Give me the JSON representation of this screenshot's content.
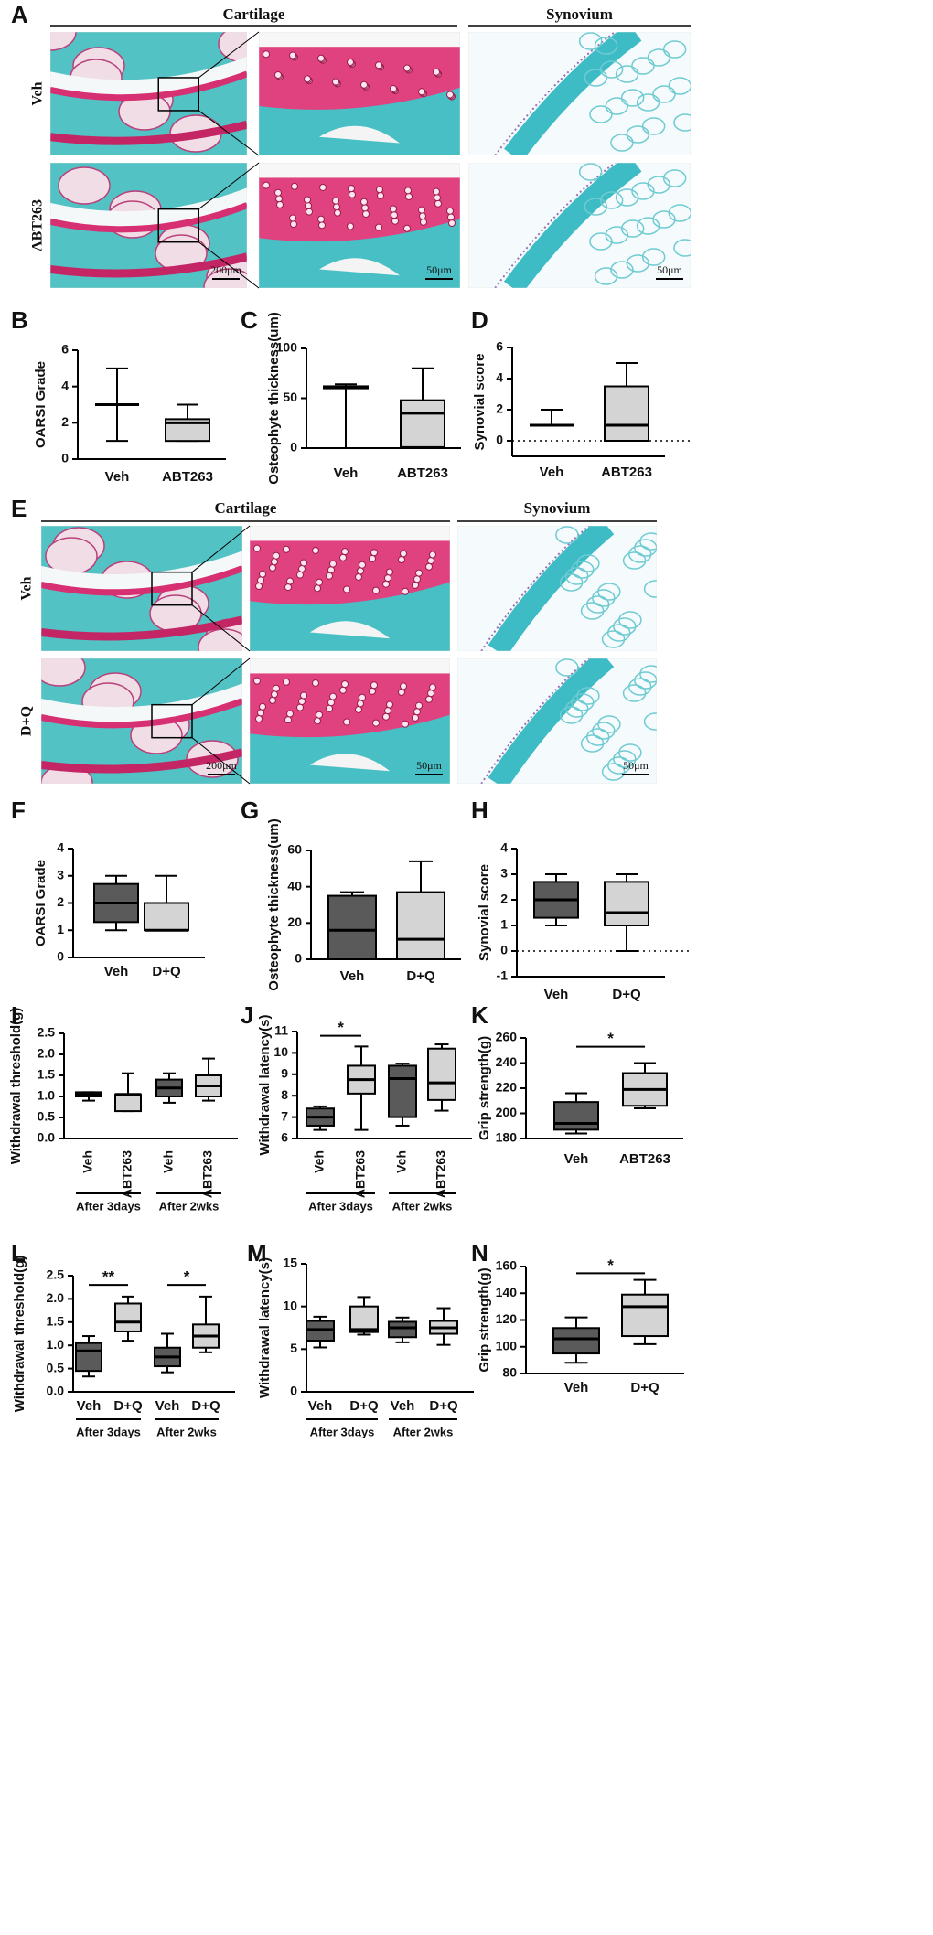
{
  "histology": [
    {
      "panel": "A",
      "headers": [
        "Cartilage",
        "Synovium"
      ],
      "rows": [
        "Veh",
        "ABT263"
      ],
      "scale_bars": [
        "200μm",
        "50μm",
        "50μm"
      ]
    },
    {
      "panel": "E",
      "headers": [
        "Cartilage",
        "Synovium"
      ],
      "rows": [
        "Veh",
        "D+Q"
      ],
      "scale_bars": [
        "200μm",
        "50μm",
        "50μm"
      ]
    }
  ],
  "chart_data": [
    {
      "type": "box",
      "panel": "B",
      "ylabel": "OARSI Grade",
      "categories": [
        "Veh",
        "ABT263"
      ],
      "colors": [
        "#5a5a5a",
        "#d4d4d4"
      ],
      "min": [
        1,
        1
      ],
      "q1": [
        3,
        1
      ],
      "median": [
        3,
        2
      ],
      "q3": [
        3,
        2.2
      ],
      "max": [
        5,
        3
      ],
      "ylim": [
        0,
        6
      ],
      "yticks": [
        0,
        2,
        4,
        6
      ]
    },
    {
      "type": "box",
      "panel": "C",
      "ylabel": "Osteophyte thickness(um)",
      "categories": [
        "Veh",
        "ABT263"
      ],
      "colors": [
        "#5a5a5a",
        "#d4d4d4"
      ],
      "min": [
        0,
        0
      ],
      "q1": [
        60,
        1
      ],
      "median": [
        61,
        35
      ],
      "q3": [
        62,
        48
      ],
      "max": [
        64,
        80
      ],
      "ylim": [
        0,
        100
      ],
      "yticks": [
        0,
        50,
        100
      ]
    },
    {
      "type": "box",
      "panel": "D",
      "ylabel": "Synovial score",
      "categories": [
        "Veh",
        "ABT263"
      ],
      "colors": [
        "#5a5a5a",
        "#d4d4d4"
      ],
      "min": [
        1,
        0
      ],
      "q1": [
        1,
        0
      ],
      "median": [
        1,
        1
      ],
      "q3": [
        1,
        3.5
      ],
      "max": [
        2,
        5
      ],
      "ylim": [
        -1,
        6
      ],
      "yticks": [
        0,
        2,
        4,
        6
      ],
      "reference_line": 0
    },
    {
      "type": "box",
      "panel": "F",
      "ylabel": "OARSI Grade",
      "categories": [
        "Veh",
        "D+Q"
      ],
      "colors": [
        "#5a5a5a",
        "#d4d4d4"
      ],
      "min": [
        1,
        1
      ],
      "q1": [
        1.3,
        1
      ],
      "median": [
        2,
        1
      ],
      "q3": [
        2.7,
        2
      ],
      "max": [
        3,
        3
      ],
      "ylim": [
        0,
        4
      ],
      "yticks": [
        0,
        1,
        2,
        3,
        4
      ]
    },
    {
      "type": "box",
      "panel": "G",
      "ylabel": "Osteophyte thickness(um)",
      "categories": [
        "Veh",
        "D+Q"
      ],
      "colors": [
        "#5a5a5a",
        "#d4d4d4"
      ],
      "min": [
        0,
        0
      ],
      "q1": [
        0,
        0
      ],
      "median": [
        16,
        11
      ],
      "q3": [
        35,
        37
      ],
      "max": [
        37,
        54
      ],
      "ylim": [
        0,
        60
      ],
      "yticks": [
        0,
        20,
        40,
        60
      ]
    },
    {
      "type": "box",
      "panel": "H",
      "ylabel": "Synovial score",
      "categories": [
        "Veh",
        "D+Q"
      ],
      "colors": [
        "#5a5a5a",
        "#d4d4d4"
      ],
      "min": [
        1,
        0
      ],
      "q1": [
        1.3,
        1
      ],
      "median": [
        2,
        1.5
      ],
      "q3": [
        2.7,
        2.7
      ],
      "max": [
        3,
        3
      ],
      "ylim": [
        -1,
        4
      ],
      "yticks": [
        -1,
        0,
        1,
        2,
        3,
        4
      ],
      "reference_line": 0
    },
    {
      "type": "box",
      "panel": "I",
      "ylabel": "Withdrawal threshold(g)",
      "categories": [
        "Veh",
        "ABT263",
        "Veh",
        "ABT263"
      ],
      "colors": [
        "#5a5a5a",
        "#d4d4d4",
        "#5a5a5a",
        "#d4d4d4"
      ],
      "min": [
        0.9,
        0.65,
        0.85,
        0.9
      ],
      "q1": [
        1.0,
        0.65,
        1.0,
        1.0
      ],
      "median": [
        1.05,
        1.05,
        1.2,
        1.25
      ],
      "q3": [
        1.1,
        1.05,
        1.4,
        1.5
      ],
      "max": [
        1.1,
        1.55,
        1.55,
        1.9
      ],
      "ylim": [
        0,
        2.5
      ],
      "yticks": [
        {
          "value": 0,
          "label": "0.0"
        },
        {
          "value": 0.5,
          "label": "0.5"
        },
        {
          "value": 1,
          "label": "1.0"
        },
        {
          "value": 1.5,
          "label": "1.5"
        },
        {
          "value": 2,
          "label": "2.0"
        },
        {
          "value": 2.5,
          "label": "2.5"
        }
      ],
      "groups": [
        {
          "label": "After 3days",
          "from": 0,
          "to": 1
        },
        {
          "label": "After 2wks",
          "from": 2,
          "to": 3
        }
      ]
    },
    {
      "type": "box",
      "panel": "J",
      "ylabel": "Withdrawal latency(s)",
      "categories": [
        "Veh",
        "ABT263",
        "Veh",
        "ABT263"
      ],
      "colors": [
        "#5a5a5a",
        "#d4d4d4",
        "#5a5a5a",
        "#d4d4d4"
      ],
      "min": [
        6.4,
        6.4,
        6.6,
        7.3
      ],
      "q1": [
        6.6,
        8.1,
        7.0,
        7.8
      ],
      "median": [
        7.0,
        8.75,
        8.8,
        8.6
      ],
      "q3": [
        7.4,
        9.4,
        9.4,
        10.2
      ],
      "max": [
        7.5,
        10.3,
        9.5,
        10.4
      ],
      "ylim": [
        6,
        11
      ],
      "yticks": [
        6,
        7,
        8,
        9,
        10,
        11
      ],
      "groups": [
        {
          "label": "After 3days",
          "from": 0,
          "to": 1
        },
        {
          "label": "After 2wks",
          "from": 2,
          "to": 3
        }
      ],
      "annotations": [
        {
          "text": "*",
          "from": 0,
          "to": 1,
          "y": 10.8
        }
      ]
    },
    {
      "type": "box",
      "panel": "K",
      "ylabel": "Grip strength(g)",
      "categories": [
        "Veh",
        "ABT263"
      ],
      "colors": [
        "#5a5a5a",
        "#d4d4d4"
      ],
      "min": [
        184,
        204
      ],
      "q1": [
        187,
        206
      ],
      "median": [
        192,
        219
      ],
      "q3": [
        209,
        232
      ],
      "max": [
        216,
        240
      ],
      "ylim": [
        180,
        260
      ],
      "yticks": [
        180,
        200,
        220,
        240,
        260
      ],
      "annotations": [
        {
          "text": "*",
          "from": 0,
          "to": 1,
          "y": 253
        }
      ]
    },
    {
      "type": "box",
      "panel": "L",
      "ylabel": "Withdrawal threshold(g)",
      "categories": [
        "Veh",
        "D+Q",
        "Veh",
        "D+Q"
      ],
      "colors": [
        "#5a5a5a",
        "#d4d4d4",
        "#5a5a5a",
        "#d4d4d4"
      ],
      "min": [
        0.33,
        1.1,
        0.42,
        0.85
      ],
      "q1": [
        0.45,
        1.3,
        0.55,
        0.95
      ],
      "median": [
        0.88,
        1.5,
        0.75,
        1.2
      ],
      "q3": [
        1.05,
        1.9,
        0.95,
        1.45
      ],
      "max": [
        1.2,
        2.05,
        1.25,
        2.05
      ],
      "ylim": [
        0,
        2.5
      ],
      "yticks": [
        {
          "value": 0,
          "label": "0.0"
        },
        {
          "value": 0.5,
          "label": "0.5"
        },
        {
          "value": 1,
          "label": "1.0"
        },
        {
          "value": 1.5,
          "label": "1.5"
        },
        {
          "value": 2,
          "label": "2.0"
        },
        {
          "value": 2.5,
          "label": "2.5"
        }
      ],
      "groups": [
        {
          "label": "After 3days",
          "from": 0,
          "to": 1
        },
        {
          "label": "After 2wks",
          "from": 2,
          "to": 3
        }
      ],
      "annotations": [
        {
          "text": "**",
          "from": 0,
          "to": 1,
          "y": 2.3
        },
        {
          "text": "*",
          "from": 2,
          "to": 3,
          "y": 2.3
        }
      ]
    },
    {
      "type": "box",
      "panel": "M",
      "ylabel": "Withdrawal latency(s)",
      "categories": [
        "Veh",
        "D+Q",
        "Veh",
        "D+Q"
      ],
      "colors": [
        "#5a5a5a",
        "#d4d4d4",
        "#5a5a5a",
        "#d4d4d4"
      ],
      "min": [
        5.2,
        6.7,
        5.8,
        5.5
      ],
      "q1": [
        6,
        7,
        6.4,
        6.8
      ],
      "median": [
        7.3,
        7.3,
        7.5,
        7.5
      ],
      "q3": [
        8.3,
        10,
        8.2,
        8.3
      ],
      "max": [
        8.8,
        11.1,
        8.7,
        9.8
      ],
      "ylim": [
        0,
        15
      ],
      "yticks": [
        0,
        5,
        10,
        15
      ],
      "groups": [
        {
          "label": "After 3days",
          "from": 0,
          "to": 1
        },
        {
          "label": "After 2wks",
          "from": 2,
          "to": 3
        }
      ]
    },
    {
      "type": "box",
      "panel": "N",
      "ylabel": "Grip strength(g)",
      "categories": [
        "Veh",
        "D+Q"
      ],
      "colors": [
        "#5a5a5a",
        "#d4d4d4"
      ],
      "min": [
        88,
        102
      ],
      "q1": [
        95,
        108
      ],
      "median": [
        106,
        130
      ],
      "q3": [
        114,
        139
      ],
      "max": [
        122,
        150
      ],
      "ylim": [
        80,
        160
      ],
      "yticks": [
        80,
        100,
        120,
        140,
        160
      ],
      "annotations": [
        {
          "text": "*",
          "from": 0,
          "to": 1,
          "y": 155
        }
      ]
    }
  ]
}
